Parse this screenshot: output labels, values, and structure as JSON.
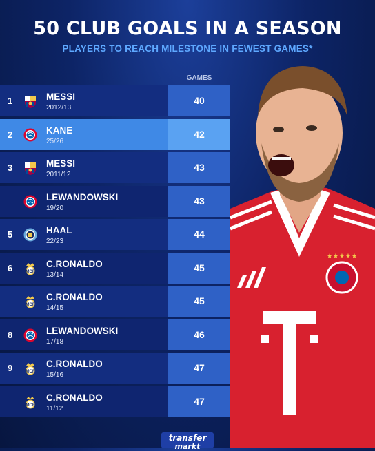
{
  "header": {
    "title": "50 CLUB GOALS IN A SEASON",
    "subtitle": "PLAYERS TO REACH MILESTONE IN FEWEST GAMES*",
    "games_label": "GAMES"
  },
  "rows": [
    {
      "rank": "1",
      "club": "barcelona-crest",
      "name": "MESSI",
      "season": "2012/13",
      "games": "40",
      "highlight": false
    },
    {
      "rank": "2",
      "club": "bayern-crest",
      "name": "KANE",
      "season": "25/26",
      "games": "42",
      "highlight": true
    },
    {
      "rank": "3",
      "club": "barcelona-crest",
      "name": "MESSI",
      "season": "2011/12",
      "games": "43",
      "highlight": false
    },
    {
      "rank": "",
      "club": "bayern-crest",
      "name": "LEWANDOWSKI",
      "season": "19/20",
      "games": "43",
      "highlight": false
    },
    {
      "rank": "5",
      "club": "man-city-crest",
      "name": "HAAL",
      "season": "22/23",
      "games": "44",
      "highlight": false
    },
    {
      "rank": "6",
      "club": "real-madrid-crest",
      "name": "C.RONALDO",
      "season": "13/14",
      "games": "45",
      "highlight": false
    },
    {
      "rank": "",
      "club": "real-madrid-crest",
      "name": "C.RONALDO",
      "season": "14/15",
      "games": "45",
      "highlight": false
    },
    {
      "rank": "8",
      "club": "bayern-crest",
      "name": "LEWANDOWSKI",
      "season": "17/18",
      "games": "46",
      "highlight": false
    },
    {
      "rank": "9",
      "club": "real-madrid-crest",
      "name": "C.RONALDO",
      "season": "15/16",
      "games": "47",
      "highlight": false
    },
    {
      "rank": "",
      "club": "real-madrid-crest",
      "name": "C.RONALDO",
      "season": "11/12",
      "games": "47",
      "highlight": false
    }
  ],
  "footer": {
    "logo_text_1": "transfer",
    "logo_text_2": "markt"
  },
  "colors": {
    "background": "#0d2466",
    "row": "#132d80",
    "highlight_row": "#3f89e6",
    "games_cell": "#2f61c6",
    "subtitle": "#5ea8ff",
    "jersey_red": "#d8212f"
  }
}
